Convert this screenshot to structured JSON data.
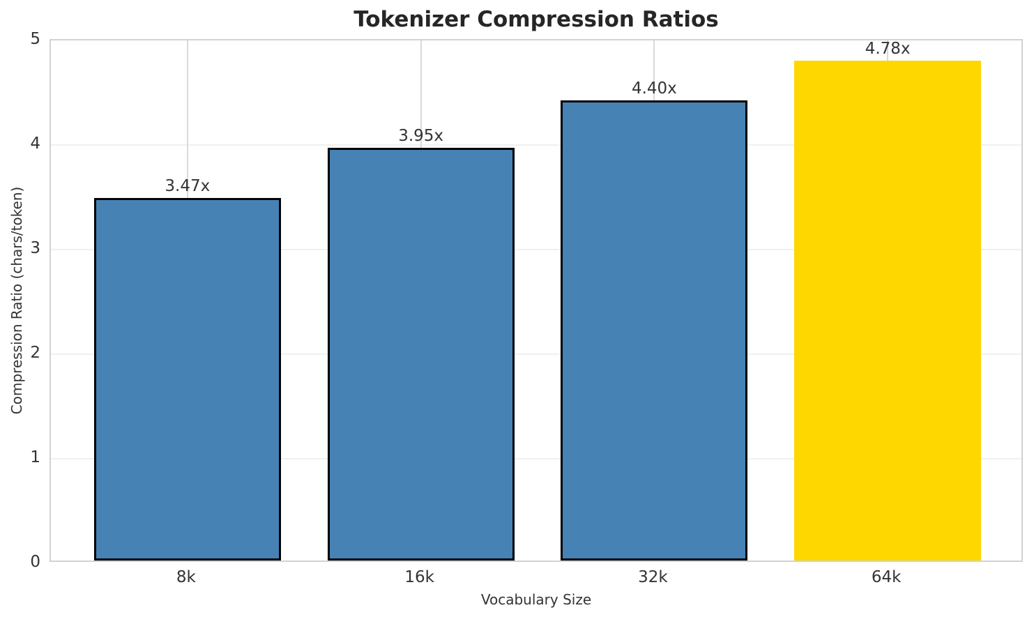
{
  "chart_data": {
    "type": "bar",
    "title": "Tokenizer Compression Ratios",
    "xlabel": "Vocabulary Size",
    "ylabel": "Compression Ratio (chars/token)",
    "categories": [
      "8k",
      "16k",
      "32k",
      "64k"
    ],
    "values": [
      3.47,
      3.95,
      4.4,
      4.78
    ],
    "bar_labels": [
      "3.47x",
      "3.95x",
      "4.40x",
      "4.78x"
    ],
    "bar_colors": [
      "#4682B4",
      "#4682B4",
      "#4682B4",
      "#FFD700"
    ],
    "bar_edge_colors": [
      "#000000",
      "#000000",
      "#000000",
      "#FFD700"
    ],
    "highlight": {
      "category": "64k",
      "color": "#FFD700"
    },
    "ylim": [
      0,
      5
    ],
    "yticks": [
      0,
      1,
      2,
      3,
      4,
      5
    ],
    "grid": true,
    "legend_position": "none",
    "colors": {
      "bar": "#4682B4",
      "highlight": "#FFD700",
      "bar_edge": "#000000",
      "grid_horizontal": "#f0f0f0",
      "grid_vertical": "#d9d9d9",
      "spine": "#d2d2d2",
      "text": "#333333",
      "title_text": "#262626",
      "background": "#ffffff"
    }
  }
}
